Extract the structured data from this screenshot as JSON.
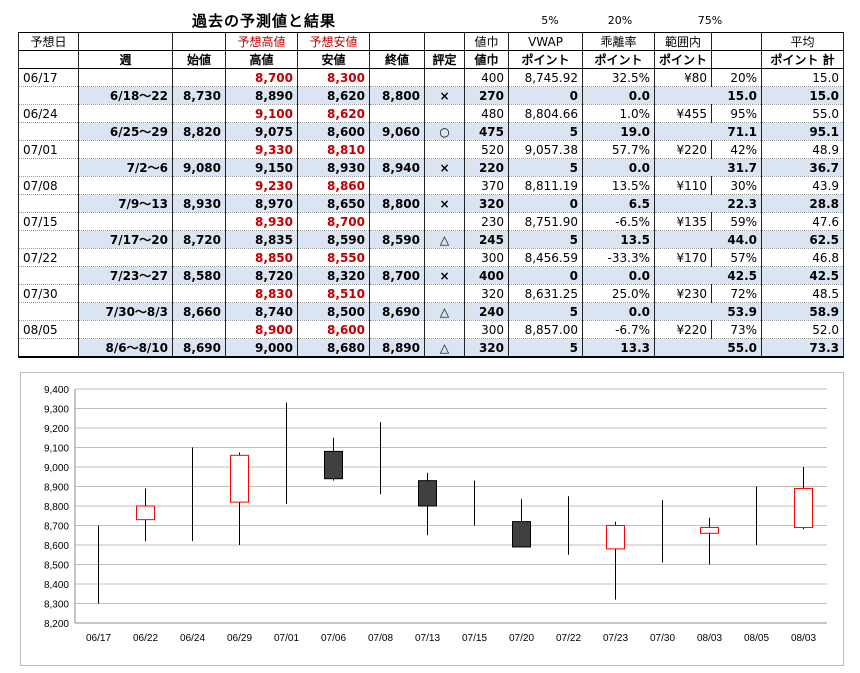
{
  "title": "過去の予測値と結果",
  "pct_labels": [
    "5%",
    "20%",
    "75%"
  ],
  "header1": [
    "予想日",
    "",
    "",
    "予想高値",
    "予想安値",
    "",
    "",
    "値巾",
    "VWAP",
    "乖離率",
    "範囲内",
    "",
    "平均"
  ],
  "header2": [
    "",
    "週",
    "始値",
    "高値",
    "安値",
    "終値",
    "評定",
    "値巾",
    "ポイント",
    "ポイント",
    "ポイント",
    "",
    "ポイント 計"
  ],
  "rows": [
    {
      "type": "pred",
      "date": "06/17",
      "hi": "8,700",
      "lo": "8,300",
      "range": "400",
      "vwap": "8,745.92",
      "dev": "32.5%",
      "yen": "¥80",
      "inr": "20%",
      "avg": "15.0"
    },
    {
      "type": "res",
      "week": "6/18〜22",
      "open": "8,730",
      "hi": "8,890",
      "lo": "8,620",
      "close": "8,800",
      "mark": "×",
      "range": "270",
      "vp": "0",
      "dp": "0.0",
      "ip": "15.0",
      "tot": "15.0"
    },
    {
      "type": "pred",
      "date": "06/24",
      "hi": "9,100",
      "lo": "8,620",
      "range": "480",
      "vwap": "8,804.66",
      "dev": "1.0%",
      "yen": "¥455",
      "inr": "95%",
      "avg": "55.0"
    },
    {
      "type": "res",
      "week": "6/25〜29",
      "open": "8,820",
      "hi": "9,075",
      "lo": "8,600",
      "close": "9,060",
      "mark": "○",
      "range": "475",
      "vp": "5",
      "dp": "19.0",
      "ip": "71.1",
      "tot": "95.1"
    },
    {
      "type": "pred",
      "date": "07/01",
      "hi": "9,330",
      "lo": "8,810",
      "range": "520",
      "vwap": "9,057.38",
      "dev": "57.7%",
      "yen": "¥220",
      "inr": "42%",
      "avg": "48.9"
    },
    {
      "type": "res",
      "week": "7/2〜6",
      "open": "9,080",
      "hi": "9,150",
      "lo": "8,930",
      "close": "8,940",
      "mark": "×",
      "range": "220",
      "vp": "5",
      "dp": "0.0",
      "ip": "31.7",
      "tot": "36.7"
    },
    {
      "type": "pred",
      "date": "07/08",
      "hi": "9,230",
      "lo": "8,860",
      "range": "370",
      "vwap": "8,811.19",
      "dev": "13.5%",
      "yen": "¥110",
      "inr": "30%",
      "avg": "43.9"
    },
    {
      "type": "res",
      "week": "7/9〜13",
      "open": "8,930",
      "hi": "8,970",
      "lo": "8,650",
      "close": "8,800",
      "mark": "×",
      "range": "320",
      "vp": "0",
      "dp": "6.5",
      "ip": "22.3",
      "tot": "28.8"
    },
    {
      "type": "pred",
      "date": "07/15",
      "hi": "8,930",
      "lo": "8,700",
      "range": "230",
      "vwap": "8,751.90",
      "dev": "-6.5%",
      "yen": "¥135",
      "inr": "59%",
      "avg": "47.6"
    },
    {
      "type": "res",
      "week": "7/17〜20",
      "open": "8,720",
      "hi": "8,835",
      "lo": "8,590",
      "close": "8,590",
      "mark": "△",
      "range": "245",
      "vp": "5",
      "dp": "13.5",
      "ip": "44.0",
      "tot": "62.5"
    },
    {
      "type": "pred",
      "date": "07/22",
      "hi": "8,850",
      "lo": "8,550",
      "range": "300",
      "vwap": "8,456.59",
      "dev": "-33.3%",
      "yen": "¥170",
      "inr": "57%",
      "avg": "46.8"
    },
    {
      "type": "res",
      "week": "7/23〜27",
      "open": "8,580",
      "hi": "8,720",
      "lo": "8,320",
      "close": "8,700",
      "mark": "×",
      "range": "400",
      "vp": "0",
      "dp": "0.0",
      "ip": "42.5",
      "tot": "42.5"
    },
    {
      "type": "pred",
      "date": "07/30",
      "hi": "8,830",
      "lo": "8,510",
      "range": "320",
      "vwap": "8,631.25",
      "dev": "25.0%",
      "yen": "¥230",
      "inr": "72%",
      "avg": "48.5"
    },
    {
      "type": "res",
      "week": "7/30〜8/3",
      "open": "8,660",
      "hi": "8,740",
      "lo": "8,500",
      "close": "8,690",
      "mark": "△",
      "range": "240",
      "vp": "5",
      "dp": "0.0",
      "ip": "53.9",
      "tot": "58.9"
    },
    {
      "type": "pred",
      "date": "08/05",
      "hi": "8,900",
      "lo": "8,600",
      "range": "300",
      "vwap": "8,857.00",
      "dev": "-6.7%",
      "yen": "¥220",
      "inr": "73%",
      "avg": "52.0"
    },
    {
      "type": "res",
      "week": "8/6〜8/10",
      "open": "8,690",
      "hi": "9,000",
      "lo": "8,680",
      "close": "8,890",
      "mark": "△",
      "range": "320",
      "vp": "5",
      "dp": "13.3",
      "ip": "55.0",
      "tot": "73.3"
    }
  ],
  "chart_data": {
    "type": "candlestick",
    "categories": [
      "06/17",
      "06/22",
      "06/24",
      "06/29",
      "07/01",
      "07/06",
      "07/08",
      "07/13",
      "07/15",
      "07/20",
      "07/22",
      "07/23",
      "07/30",
      "08/03",
      "08/05",
      "08/03"
    ],
    "candles": [
      {
        "open": null,
        "high": 8700,
        "low": 8300,
        "close": null
      },
      {
        "open": 8730,
        "high": 8890,
        "low": 8620,
        "close": 8800
      },
      {
        "open": null,
        "high": 9100,
        "low": 8620,
        "close": null
      },
      {
        "open": 8820,
        "high": 9075,
        "low": 8600,
        "close": 9060
      },
      {
        "open": null,
        "high": 9330,
        "low": 8810,
        "close": null
      },
      {
        "open": 9080,
        "high": 9150,
        "low": 8930,
        "close": 8940
      },
      {
        "open": null,
        "high": 9230,
        "low": 8860,
        "close": null
      },
      {
        "open": 8930,
        "high": 8970,
        "low": 8650,
        "close": 8800
      },
      {
        "open": null,
        "high": 8930,
        "low": 8700,
        "close": null
      },
      {
        "open": 8720,
        "high": 8835,
        "low": 8590,
        "close": 8590
      },
      {
        "open": null,
        "high": 8850,
        "low": 8550,
        "close": null
      },
      {
        "open": 8580,
        "high": 8720,
        "low": 8320,
        "close": 8700
      },
      {
        "open": null,
        "high": 8830,
        "low": 8510,
        "close": null
      },
      {
        "open": 8660,
        "high": 8740,
        "low": 8500,
        "close": 8690
      },
      {
        "open": null,
        "high": 8900,
        "low": 8600,
        "close": null
      },
      {
        "open": 8690,
        "high": 9000,
        "low": 8680,
        "close": 8890
      }
    ],
    "ylim": [
      8200,
      9400
    ],
    "yticks": [
      "8,200",
      "8,300",
      "8,400",
      "8,500",
      "8,600",
      "8,700",
      "8,800",
      "8,900",
      "9,000",
      "9,100",
      "9,200",
      "9,300",
      "9,400"
    ],
    "grid": true,
    "up_color": "#ff0000",
    "down_color": "#404040"
  }
}
